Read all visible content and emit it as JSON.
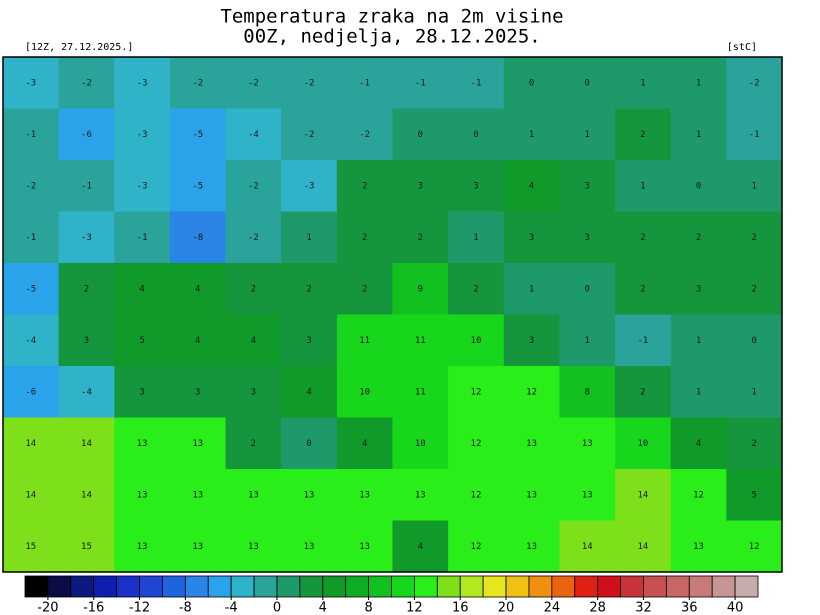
{
  "header": {
    "title": "Temperatura zraka na 2m visine",
    "subtitle": "00Z, nedjelja, 28.12.2025.",
    "run": "[12Z, 27.12.2025.]",
    "unit": "[stC]"
  },
  "map": {
    "values": [
      [
        -3,
        -2,
        -3,
        -2,
        -2,
        -2,
        -1,
        -1,
        -1,
        0,
        0,
        1,
        1,
        -2
      ],
      [
        -1,
        -6,
        -3,
        -5,
        -4,
        -2,
        -2,
        0,
        0,
        1,
        1,
        2,
        1,
        -1
      ],
      [
        -2,
        -1,
        -3,
        -5,
        -2,
        -3,
        2,
        3,
        3,
        4,
        3,
        1,
        0,
        1
      ],
      [
        -1,
        -3,
        -1,
        -8,
        -2,
        1,
        2,
        2,
        1,
        3,
        3,
        2,
        2,
        2
      ],
      [
        -5,
        2,
        4,
        4,
        2,
        2,
        2,
        9,
        2,
        1,
        0,
        2,
        3,
        2
      ],
      [
        -4,
        3,
        5,
        4,
        4,
        3,
        11,
        11,
        10,
        3,
        1,
        -1,
        1,
        0
      ],
      [
        -6,
        -4,
        3,
        3,
        3,
        4,
        10,
        11,
        12,
        12,
        8,
        2,
        1,
        1
      ],
      [
        14,
        14,
        13,
        13,
        2,
        0,
        4,
        10,
        12,
        13,
        13,
        10,
        4,
        2
      ],
      [
        14,
        14,
        13,
        13,
        13,
        13,
        13,
        13,
        12,
        13,
        13,
        14,
        12,
        5
      ],
      [
        15,
        15,
        13,
        13,
        13,
        13,
        13,
        4,
        12,
        13,
        14,
        14,
        13,
        12
      ]
    ]
  },
  "colorbar": {
    "lim": [
      -22,
      42
    ],
    "ticks": [
      -20,
      -16,
      -12,
      -8,
      -4,
      0,
      4,
      8,
      12,
      16,
      20,
      24,
      28,
      32,
      36,
      40
    ],
    "colors": [
      "#000000",
      "#0b0c45",
      "#0c1a80",
      "#0f1fb0",
      "#1a32c8",
      "#1e46d2",
      "#1e64dc",
      "#2a85e6",
      "#2aa3ea",
      "#2fb3c8",
      "#2aa39a",
      "#1e9a6a",
      "#16963c",
      "#0f9a2a",
      "#10ad24",
      "#12c020",
      "#18d61c",
      "#2aee1a",
      "#7de01a",
      "#b4e81e",
      "#e6e61e",
      "#f0c014",
      "#f09010",
      "#e86410",
      "#e02010",
      "#d0101a",
      "#c8343a",
      "#c85050",
      "#c86666",
      "#c87a7a",
      "#c89494",
      "#c8acac"
    ]
  }
}
